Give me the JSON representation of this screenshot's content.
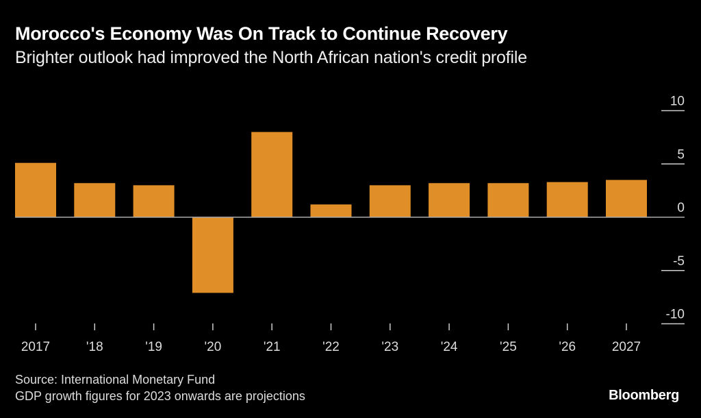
{
  "chart_data": {
    "type": "bar",
    "title": "Morocco's Economy Was On Track to Continue Recovery",
    "subtitle": "Brighter outlook had improved the North African nation's credit profile",
    "categories": [
      "2017",
      "'18",
      "'19",
      "'20",
      "'21",
      "'22",
      "'23",
      "'24",
      "'25",
      "'26",
      "2027"
    ],
    "values": [
      5.1,
      3.2,
      3.0,
      -7.1,
      8.0,
      1.2,
      3.0,
      3.2,
      3.2,
      3.3,
      3.5
    ],
    "yticks": [
      10,
      5,
      0,
      -5,
      -10
    ],
    "ylim": [
      -10,
      10
    ],
    "xlabel": "",
    "ylabel": "",
    "bar_color": "#e08e27",
    "source": "Source: International Monetary Fund",
    "note": "GDP growth figures for 2023 onwards are projections",
    "logo": "Bloomberg"
  }
}
